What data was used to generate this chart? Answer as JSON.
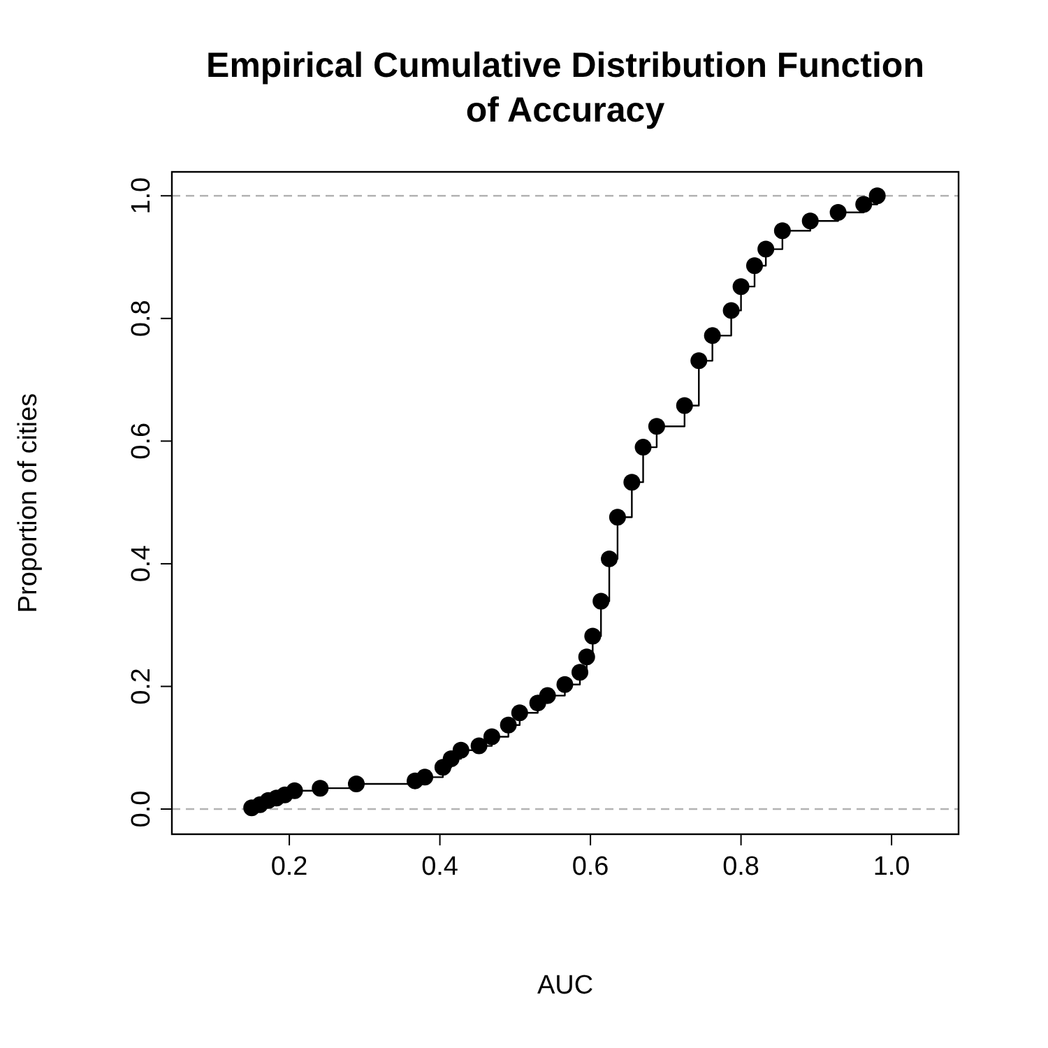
{
  "chart_data": {
    "type": "step",
    "title": "Empirical Cumulative Distribution Function\nof Accuracy",
    "xlabel": "AUC",
    "ylabel": "Proportion of cities",
    "x": [
      0.15,
      0.161,
      0.172,
      0.183,
      0.194,
      0.207,
      0.241,
      0.289,
      0.367,
      0.38,
      0.404,
      0.415,
      0.428,
      0.452,
      0.469,
      0.491,
      0.506,
      0.53,
      0.543,
      0.566,
      0.586,
      0.595,
      0.603,
      0.614,
      0.625,
      0.636,
      0.655,
      0.67,
      0.688,
      0.725,
      0.744,
      0.762,
      0.787,
      0.8,
      0.818,
      0.833,
      0.855,
      0.892,
      0.929,
      0.963,
      0.981
    ],
    "series": [
      {
        "color": "#000000",
        "values": [
          0.002,
          0.007,
          0.014,
          0.018,
          0.023,
          0.03,
          0.034,
          0.041,
          0.046,
          0.052,
          0.068,
          0.082,
          0.096,
          0.103,
          0.118,
          0.137,
          0.157,
          0.173,
          0.185,
          0.203,
          0.223,
          0.248,
          0.282,
          0.339,
          0.408,
          0.476,
          0.533,
          0.59,
          0.624,
          0.658,
          0.731,
          0.772,
          0.813,
          0.852,
          0.886,
          0.913,
          0.943,
          0.959,
          0.973,
          0.986,
          1.0
        ]
      }
    ],
    "xlim": [
      0.044,
      1.089
    ],
    "ylim": [
      -0.041,
      1.039
    ],
    "xticks": [
      0.2,
      0.4,
      0.6,
      0.8,
      {
        "value": 1,
        "label": "1.0"
      }
    ],
    "yticks": [
      {
        "value": 0,
        "label": "0.0"
      },
      0.2,
      0.4,
      0.6,
      0.8,
      {
        "value": 1,
        "label": "1.0"
      }
    ],
    "ref_lines": [
      {
        "axis": "y",
        "value": 0,
        "color": "#b3b3b3",
        "line_style": "dashed"
      },
      {
        "axis": "y",
        "value": 1,
        "color": "#b3b3b3",
        "line_style": "dashed"
      }
    ],
    "marker": "circle",
    "grid": false
  }
}
